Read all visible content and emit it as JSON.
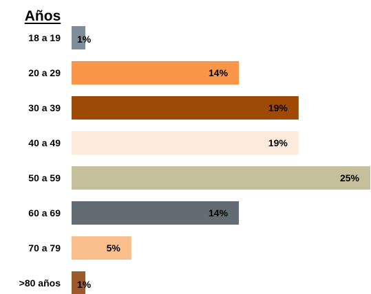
{
  "chart_data": {
    "type": "bar",
    "orientation": "horizontal",
    "title": "Años",
    "categories": [
      "18 a 19",
      "20 a 29",
      "30 a 39",
      "40 a 49",
      "50 a 59",
      "60 a 69",
      "70 a 79",
      ">80  años"
    ],
    "values": [
      1,
      14,
      19,
      19,
      25,
      14,
      5,
      1
    ],
    "value_labels": [
      "1%",
      "14%",
      "19%",
      "19%",
      "25%",
      "14%",
      "5%",
      "1%"
    ],
    "colors": [
      "#7f8c99",
      "#f9964a",
      "#9e4a06",
      "#fdeadb",
      "#c6bf9c",
      "#626c72",
      "#fbbf8d",
      "#9c5a2b"
    ],
    "xlim": [
      0,
      25
    ],
    "grid": false,
    "legend": "none"
  }
}
